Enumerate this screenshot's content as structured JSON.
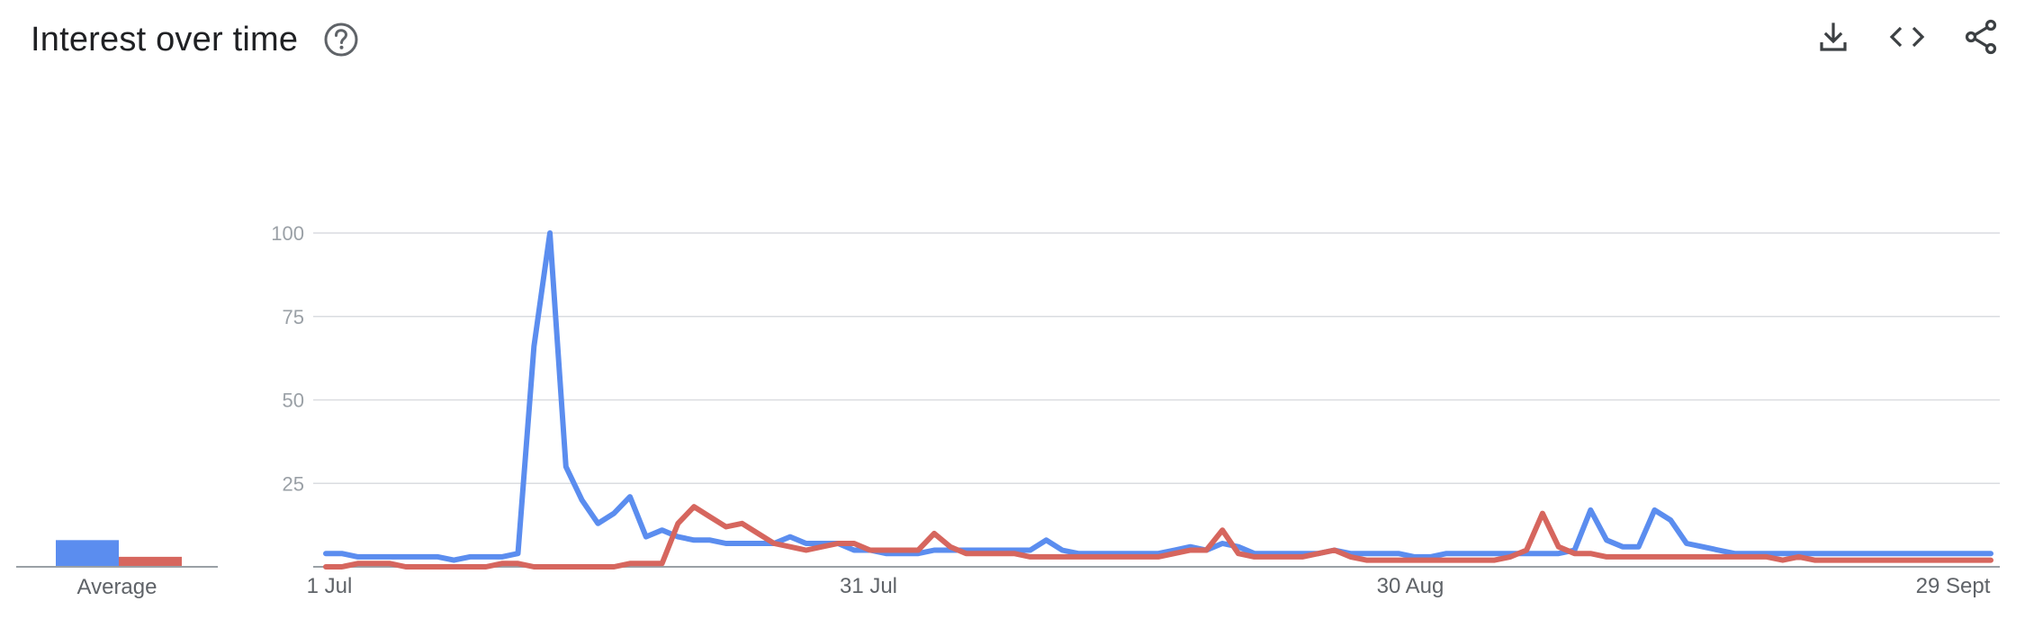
{
  "header": {
    "title": "Interest over time",
    "help_icon": "help-circle-icon",
    "actions": [
      {
        "name": "download-button",
        "icon": "download-icon"
      },
      {
        "name": "embed-button",
        "icon": "code-icon"
      },
      {
        "name": "share-button",
        "icon": "share-icon"
      }
    ]
  },
  "colors": {
    "series1": "#5b8def",
    "series2": "#d6665e",
    "grid": "#dadce0",
    "axis": "#9aa0a6"
  },
  "chart_data": {
    "type": "line",
    "ylim": [
      0,
      100
    ],
    "yticks": [
      25,
      50,
      75,
      100
    ],
    "ytick_labels": [
      "25",
      "50",
      "75",
      "100"
    ],
    "xtick_labels": [
      "1 Jul",
      "31 Jul",
      "30 Aug",
      "29 Sept"
    ],
    "average_label": "Average",
    "averages": [
      8,
      3
    ],
    "series": [
      {
        "values": [
          4,
          4,
          3,
          3,
          3,
          3,
          3,
          3,
          2,
          3,
          3,
          3,
          4,
          66,
          100,
          30,
          20,
          13,
          16,
          21,
          9,
          11,
          9,
          8,
          8,
          7,
          7,
          7,
          7,
          9,
          7,
          7,
          7,
          5,
          5,
          4,
          4,
          4,
          5,
          5,
          5,
          5,
          5,
          5,
          5,
          8,
          5,
          4,
          4,
          4,
          4,
          4,
          4,
          5,
          6,
          5,
          7,
          6,
          4,
          4,
          4,
          4,
          4,
          5,
          4,
          4,
          4,
          4,
          3,
          3,
          4,
          4,
          4,
          4,
          4,
          4,
          4,
          4,
          5,
          17,
          8,
          6,
          6,
          17,
          14,
          7,
          6,
          5,
          4,
          4,
          4,
          4,
          4,
          4,
          4,
          4,
          4,
          4,
          4,
          4,
          4,
          4,
          4,
          4,
          4
        ]
      },
      {
        "values": [
          0,
          0,
          1,
          1,
          1,
          0,
          0,
          0,
          0,
          0,
          0,
          1,
          1,
          0,
          0,
          0,
          0,
          0,
          0,
          1,
          1,
          1,
          13,
          18,
          15,
          12,
          13,
          10,
          7,
          6,
          5,
          6,
          7,
          7,
          5,
          5,
          5,
          5,
          10,
          6,
          4,
          4,
          4,
          4,
          3,
          3,
          3,
          3,
          3,
          3,
          3,
          3,
          3,
          4,
          5,
          5,
          11,
          4,
          3,
          3,
          3,
          3,
          4,
          5,
          3,
          2,
          2,
          2,
          2,
          2,
          2,
          2,
          2,
          2,
          3,
          5,
          16,
          6,
          4,
          4,
          3,
          3,
          3,
          3,
          3,
          3,
          3,
          3,
          3,
          3,
          3,
          2,
          3,
          2,
          2,
          2,
          2,
          2,
          2,
          2,
          2,
          2,
          2,
          2,
          2
        ]
      }
    ]
  }
}
